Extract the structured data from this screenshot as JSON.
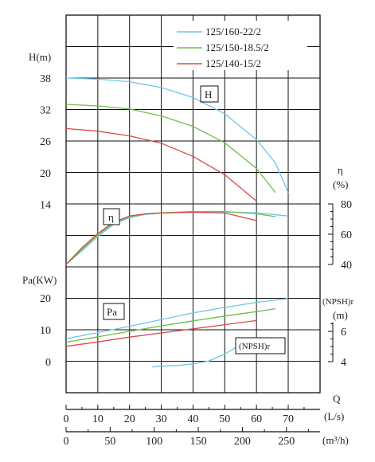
{
  "chart_data": {
    "type": "line",
    "title": "",
    "legend": {
      "placement": "top-right",
      "entries": [
        {
          "name": "125/160-22/2",
          "color": "#6ec6e8"
        },
        {
          "name": "125/150-18.5/2",
          "color": "#6cbf4a"
        },
        {
          "name": "125/140-15/2",
          "color": "#d94a48"
        }
      ]
    },
    "x_axis": {
      "label": "Q",
      "ls": {
        "unit": "(L/s)",
        "ticks": [
          0,
          10,
          20,
          30,
          40,
          50,
          60,
          70
        ],
        "range": [
          0,
          70
        ]
      },
      "m3h": {
        "unit": "(m³/h)",
        "ticks": [
          0,
          50,
          100,
          150,
          200,
          250
        ]
      }
    },
    "y_axes": {
      "head": {
        "label": "H(m)",
        "ticks": [
          14,
          20,
          26,
          32,
          38
        ]
      },
      "eff": {
        "label": "η",
        "unit": "(%)",
        "ticks": [
          40,
          60,
          80
        ]
      },
      "power": {
        "label": "Pa(KW)",
        "ticks": [
          0,
          10,
          20
        ]
      },
      "npsh": {
        "label": "(NPSH)r",
        "unit": "(m)",
        "ticks": [
          4,
          6
        ]
      }
    },
    "curve_labels": {
      "head": "H",
      "eff": "η",
      "power": "Pa",
      "npsh": "(NPSH)r"
    },
    "curves": {
      "head": [
        {
          "name": "125/160-22/2",
          "x": [
            0,
            10,
            20,
            30,
            40,
            50,
            60,
            66,
            70
          ],
          "y": [
            38,
            37.8,
            37.3,
            36.2,
            34.3,
            31.2,
            26.3,
            21.8,
            16.2
          ]
        },
        {
          "name": "125/150-18.5/2",
          "x": [
            0,
            10,
            20,
            30,
            40,
            50,
            60,
            66
          ],
          "y": [
            33,
            32.7,
            32.1,
            30.8,
            28.8,
            25.7,
            20.8,
            16.2
          ]
        },
        {
          "name": "125/140-15/2",
          "x": [
            0,
            10,
            20,
            30,
            40,
            50,
            60
          ],
          "y": [
            28.4,
            27.9,
            27.0,
            25.6,
            23.1,
            19.6,
            14.6
          ]
        }
      ],
      "efficiency": [
        {
          "name": "125/160-22/2",
          "x": [
            0,
            5,
            10,
            15,
            20,
            25,
            30,
            40,
            50,
            60,
            70
          ],
          "y": [
            40,
            49,
            58.5,
            66.5,
            71,
            73,
            74,
            74.4,
            74.7,
            74.1,
            72
          ]
        },
        {
          "name": "125/150-18.5/2",
          "x": [
            0,
            5,
            10,
            15,
            20,
            25,
            30,
            40,
            50,
            60,
            66
          ],
          "y": [
            40,
            50,
            59.5,
            67.5,
            71.5,
            73.5,
            74.1,
            75,
            75,
            73.5,
            71.6
          ]
        },
        {
          "name": "125/140-15/2",
          "x": [
            0,
            5,
            10,
            15,
            20,
            25,
            30,
            40,
            50,
            60
          ],
          "y": [
            40,
            51,
            60.5,
            68,
            72,
            73.5,
            74,
            74.5,
            74,
            69
          ]
        }
      ],
      "power": [
        {
          "name": "125/160-22/2",
          "x": [
            0,
            10,
            20,
            30,
            40,
            50,
            60,
            70
          ],
          "y": [
            7.2,
            9.1,
            11.1,
            13.2,
            15.3,
            17.0,
            18.6,
            19.8
          ]
        },
        {
          "name": "125/150-18.5/2",
          "x": [
            0,
            10,
            20,
            30,
            40,
            50,
            60,
            66
          ],
          "y": [
            6.1,
            7.8,
            9.5,
            11.2,
            12.8,
            14.3,
            15.7,
            16.6
          ]
        },
        {
          "name": "125/140-15/2",
          "x": [
            0,
            10,
            20,
            30,
            40,
            50,
            60
          ],
          "y": [
            4.8,
            6.2,
            7.7,
            9.0,
            10.3,
            11.6,
            12.9
          ]
        }
      ],
      "npsh": [
        {
          "name": "125/160-22/2",
          "x": [
            27,
            30,
            35,
            40,
            45,
            50,
            54
          ],
          "y": [
            3.65,
            3.7,
            3.75,
            3.85,
            4.05,
            4.5,
            5.0
          ]
        }
      ]
    },
    "grid": true
  }
}
